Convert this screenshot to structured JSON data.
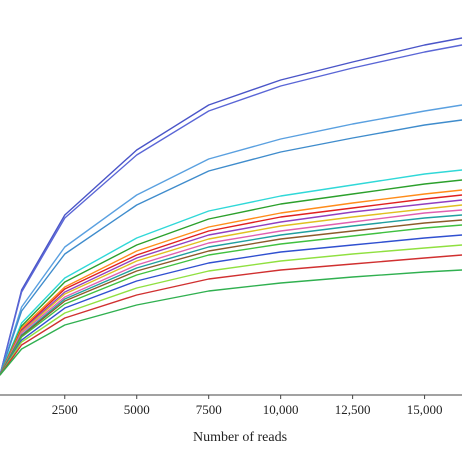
{
  "chart_data": {
    "type": "line",
    "x_label": "Number of reads",
    "x": [
      250,
      1000,
      2500,
      5000,
      7500,
      10000,
      12500,
      15000,
      16300
    ],
    "xlim": [
      250,
      16300
    ],
    "xticks": [
      2500,
      5000,
      7500,
      {
        "value": 10000,
        "label": "10,000"
      },
      {
        "value": 12500,
        "label": "12,500"
      },
      {
        "value": 15000,
        "label": "15,000"
      }
    ],
    "ylim": [
      0,
      395
    ],
    "series": [
      {
        "color": "#4a55c8",
        "values": [
          20,
          105,
          180,
          245,
          290,
          315,
          333,
          350,
          357
        ]
      },
      {
        "color": "#5a66d6",
        "values": [
          20,
          103,
          177,
          240,
          284,
          309,
          327,
          343,
          350
        ]
      },
      {
        "color": "#5aa0e0",
        "values": [
          20,
          88,
          148,
          200,
          236,
          256,
          271,
          284,
          290
        ]
      },
      {
        "color": "#3f8ccc",
        "values": [
          20,
          84,
          141,
          190,
          224,
          243,
          257,
          270,
          275
        ]
      },
      {
        "color": "#30d8d8",
        "values": [
          20,
          72,
          117,
          157,
          184,
          199,
          210,
          221,
          225
        ]
      },
      {
        "color": "#2ca02c",
        "values": [
          20,
          69,
          113,
          150,
          176,
          191,
          201,
          211,
          215
        ]
      },
      {
        "color": "#ff8c1a",
        "values": [
          20,
          67,
          108,
          144,
          168,
          182,
          192,
          201,
          205
        ]
      },
      {
        "color": "#e02020",
        "values": [
          20,
          65,
          106,
          140,
          164,
          178,
          187,
          196,
          200
        ]
      },
      {
        "color": "#9040c0",
        "values": [
          20,
          64,
          103,
          137,
          160,
          173,
          183,
          191,
          195
        ]
      },
      {
        "color": "#e0c020",
        "values": [
          20,
          63,
          101,
          134,
          156,
          169,
          178,
          186,
          190
        ]
      },
      {
        "color": "#e060b0",
        "values": [
          20,
          62,
          98,
          130,
          152,
          164,
          173,
          182,
          185
        ]
      },
      {
        "color": "#20a0a0",
        "values": [
          20,
          60,
          96,
          127,
          148,
          160,
          169,
          177,
          180
        ]
      },
      {
        "color": "#8c5a2a",
        "values": [
          20,
          59,
          94,
          124,
          144,
          156,
          164,
          172,
          175
        ]
      },
      {
        "color": "#40c040",
        "values": [
          20,
          58,
          91,
          120,
          140,
          151,
          159,
          167,
          170
        ]
      },
      {
        "color": "#3050d0",
        "values": [
          20,
          55,
          87,
          114,
          132,
          143,
          150,
          157,
          160
        ]
      },
      {
        "color": "#90e040",
        "values": [
          20,
          53,
          82,
          107,
          124,
          134,
          141,
          147,
          150
        ]
      },
      {
        "color": "#d03030",
        "values": [
          20,
          50,
          77,
          100,
          116,
          125,
          131,
          137,
          140
        ]
      },
      {
        "color": "#30b050",
        "values": [
          20,
          46,
          70,
          90,
          104,
          112,
          118,
          123,
          125
        ]
      }
    ]
  }
}
